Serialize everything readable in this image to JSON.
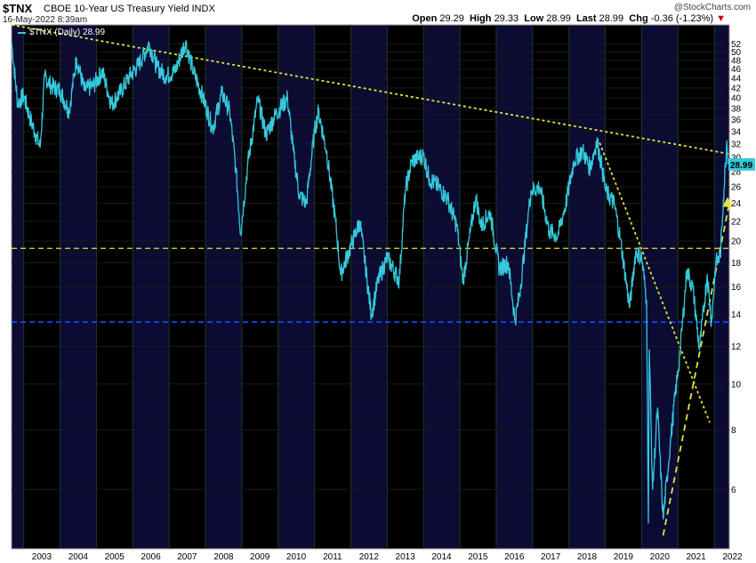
{
  "header": {
    "ticker": "$TNX",
    "instrument": "CBOE 10-Year US Treasury Yield INDX",
    "timestamp": "16-May-2022 8:39am",
    "watermark": "@StockCharts.com",
    "ohlc": {
      "open_label": "Open",
      "open": "29.29",
      "high_label": "High",
      "high": "29.33",
      "low_label": "Low",
      "low": "28.99",
      "last_label": "Last",
      "last": "28.99",
      "chg_label": "Chg",
      "chg": "-0.36 (-1.23%)"
    }
  },
  "legend": {
    "series_label": "$TNX (Daily) 28.99"
  },
  "colors": {
    "background": "#000000",
    "panel_band_light": "#0b0b33",
    "panel_band_dark": "#000000",
    "series": "#35c9dc",
    "trendline": "#e8e23c",
    "support_blue": "#1a3fe0",
    "last_price_box": "#35c9dc"
  },
  "chart_data": {
    "type": "line",
    "title": "$TNX",
    "xlabel": "",
    "ylabel": "",
    "y_scale": "log",
    "ylim": [
      4.5,
      57
    ],
    "xlim": [
      "2002-09-01",
      "2022-05-31"
    ],
    "grid": true,
    "legend_position": "top-left",
    "x_tick_labels": [
      "2003",
      "2004",
      "2005",
      "2006",
      "2007",
      "2008",
      "2009",
      "2010",
      "2011",
      "2012",
      "2013",
      "2014",
      "2015",
      "2016",
      "2017",
      "2018",
      "2019",
      "2020",
      "2021",
      "2022"
    ],
    "y_tick_labels": [
      "52",
      "50",
      "48",
      "46",
      "44",
      "42",
      "40",
      "38",
      "36",
      "34",
      "32",
      "30",
      "28",
      "26",
      "24",
      "22",
      "20",
      "18",
      "16",
      "14",
      "12",
      "10",
      "8",
      "6"
    ],
    "last_value_label": "28.99",
    "series": [
      {
        "name": "$TNX (Daily)",
        "x": [
          "2002-09-01",
          "2002-11-01",
          "2003-01-01",
          "2003-03-01",
          "2003-05-01",
          "2003-06-15",
          "2003-08-01",
          "2003-10-01",
          "2004-01-01",
          "2004-04-01",
          "2004-06-15",
          "2004-09-01",
          "2004-12-01",
          "2005-03-01",
          "2005-06-01",
          "2005-09-01",
          "2005-12-01",
          "2006-03-01",
          "2006-06-15",
          "2006-09-01",
          "2006-12-01",
          "2007-03-01",
          "2007-06-15",
          "2007-09-01",
          "2007-12-01",
          "2008-03-15",
          "2008-06-15",
          "2008-09-01",
          "2008-11-01",
          "2008-12-20",
          "2009-03-01",
          "2009-06-10",
          "2009-09-01",
          "2009-12-01",
          "2010-04-05",
          "2010-06-01",
          "2010-08-01",
          "2010-10-10",
          "2011-01-01",
          "2011-02-10",
          "2011-05-01",
          "2011-08-01",
          "2011-09-20",
          "2012-01-01",
          "2012-04-01",
          "2012-07-25",
          "2012-10-01",
          "2013-01-01",
          "2013-05-01",
          "2013-07-01",
          "2013-09-05",
          "2013-12-31",
          "2014-03-01",
          "2014-06-01",
          "2014-09-01",
          "2014-12-01",
          "2015-02-01",
          "2015-06-10",
          "2015-08-01",
          "2015-11-01",
          "2016-02-01",
          "2016-05-01",
          "2016-07-08",
          "2016-09-01",
          "2016-11-15",
          "2016-12-15",
          "2017-03-13",
          "2017-06-15",
          "2017-09-08",
          "2017-12-01",
          "2018-02-20",
          "2018-05-17",
          "2018-08-01",
          "2018-10-08",
          "2018-12-01",
          "2019-01-03",
          "2019-04-01",
          "2019-06-01",
          "2019-09-03",
          "2019-11-01",
          "2020-01-01",
          "2020-02-20",
          "2020-03-09",
          "2020-03-18",
          "2020-04-20",
          "2020-06-08",
          "2020-08-04",
          "2020-10-15",
          "2020-12-01",
          "2021-01-15",
          "2021-03-31",
          "2021-06-01",
          "2021-08-04",
          "2021-10-21",
          "2021-12-03",
          "2022-01-15",
          "2022-03-01",
          "2022-04-01",
          "2022-05-06",
          "2022-05-16"
        ],
        "values": [
          52.5,
          39.0,
          40.5,
          36.5,
          33.5,
          31.5,
          44.5,
          42.5,
          41.5,
          37.5,
          48.5,
          41.5,
          42.5,
          45.5,
          38.8,
          41.2,
          44.5,
          47.0,
          52.0,
          46.5,
          44.5,
          45.5,
          52.5,
          45.5,
          40.5,
          34.5,
          41.0,
          37.5,
          28.5,
          20.8,
          29.0,
          39.8,
          33.5,
          36.8,
          40.0,
          31.0,
          25.0,
          24.0,
          34.0,
          37.5,
          31.0,
          22.0,
          17.0,
          19.5,
          22.0,
          14.0,
          16.5,
          18.5,
          16.5,
          25.5,
          29.5,
          30.3,
          27.0,
          26.0,
          24.5,
          21.5,
          16.5,
          24.8,
          21.5,
          23.0,
          17.5,
          18.0,
          13.6,
          16.0,
          22.5,
          25.5,
          26.0,
          21.0,
          20.5,
          24.0,
          29.5,
          31.0,
          28.5,
          32.5,
          28.5,
          25.5,
          24.0,
          20.2,
          14.5,
          19.0,
          18.5,
          15.0,
          5.1,
          11.8,
          6.0,
          8.9,
          5.2,
          7.5,
          9.4,
          11.3,
          17.4,
          15.8,
          11.8,
          17.0,
          13.5,
          18.0,
          18.5,
          24.5,
          32.5,
          28.99
        ]
      }
    ],
    "overlays": [
      {
        "type": "trendline",
        "style": "dotted",
        "points": [
          [
            "2002-09-01",
            57.0
          ],
          [
            "2022-05-31",
            30.5
          ]
        ]
      },
      {
        "type": "trendline",
        "style": "dotted",
        "points": [
          [
            "2018-11-05",
            32.2
          ],
          [
            "2021-11-15",
            8.3
          ]
        ]
      },
      {
        "type": "trendline",
        "style": "dashed",
        "points": [
          [
            "2020-08-04",
            4.8
          ],
          [
            "2022-05-31",
            24.0
          ]
        ]
      },
      {
        "type": "horizontal",
        "style": "dashed",
        "color": "yellow",
        "value": 19.3
      },
      {
        "type": "horizontal",
        "style": "dashed",
        "color": "blue",
        "value": 13.5
      }
    ]
  }
}
